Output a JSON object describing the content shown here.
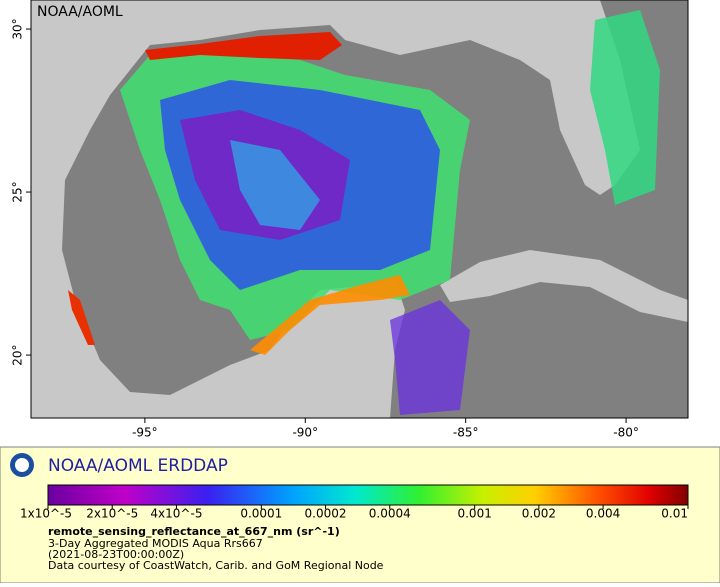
{
  "map": {
    "watermark": "NOAA/AOML",
    "xlim": [
      -98.55,
      -78.07
    ],
    "ylim": [
      18.07,
      30.89
    ],
    "lon_ticks": [
      {
        "value": -95,
        "label": "-95°"
      },
      {
        "value": -90,
        "label": "-90°"
      },
      {
        "value": -85,
        "label": "-85°"
      },
      {
        "value": -80,
        "label": "-80°"
      }
    ],
    "lat_ticks": [
      {
        "value": 20,
        "label": "20°"
      },
      {
        "value": 25,
        "label": "25°"
      },
      {
        "value": 30,
        "label": "30°"
      }
    ]
  },
  "legend": {
    "title": "NOAA/AOML ERDDAP",
    "colorbar": {
      "log_scale": true,
      "range": [
        1e-05,
        0.01
      ],
      "ticks": [
        {
          "value": 1e-05,
          "label": "1x10^-5"
        },
        {
          "value": 2e-05,
          "label": "2x10^-5"
        },
        {
          "value": 4e-05,
          "label": "4x10^-5"
        },
        0.0001,
        0.0002,
        0.0004,
        0.001,
        0.002,
        0.004,
        0.01
      ]
    },
    "variable": "remote_sensing_reflectance_at_667_nm (sr^-1)",
    "lines": [
      "3-Day Aggregated MODIS Aqua Rrs667",
      "(2021-08-23T00:00:00Z)",
      "Data courtesy of CoastWatch, Carib. and GoM Regional Node"
    ]
  }
}
